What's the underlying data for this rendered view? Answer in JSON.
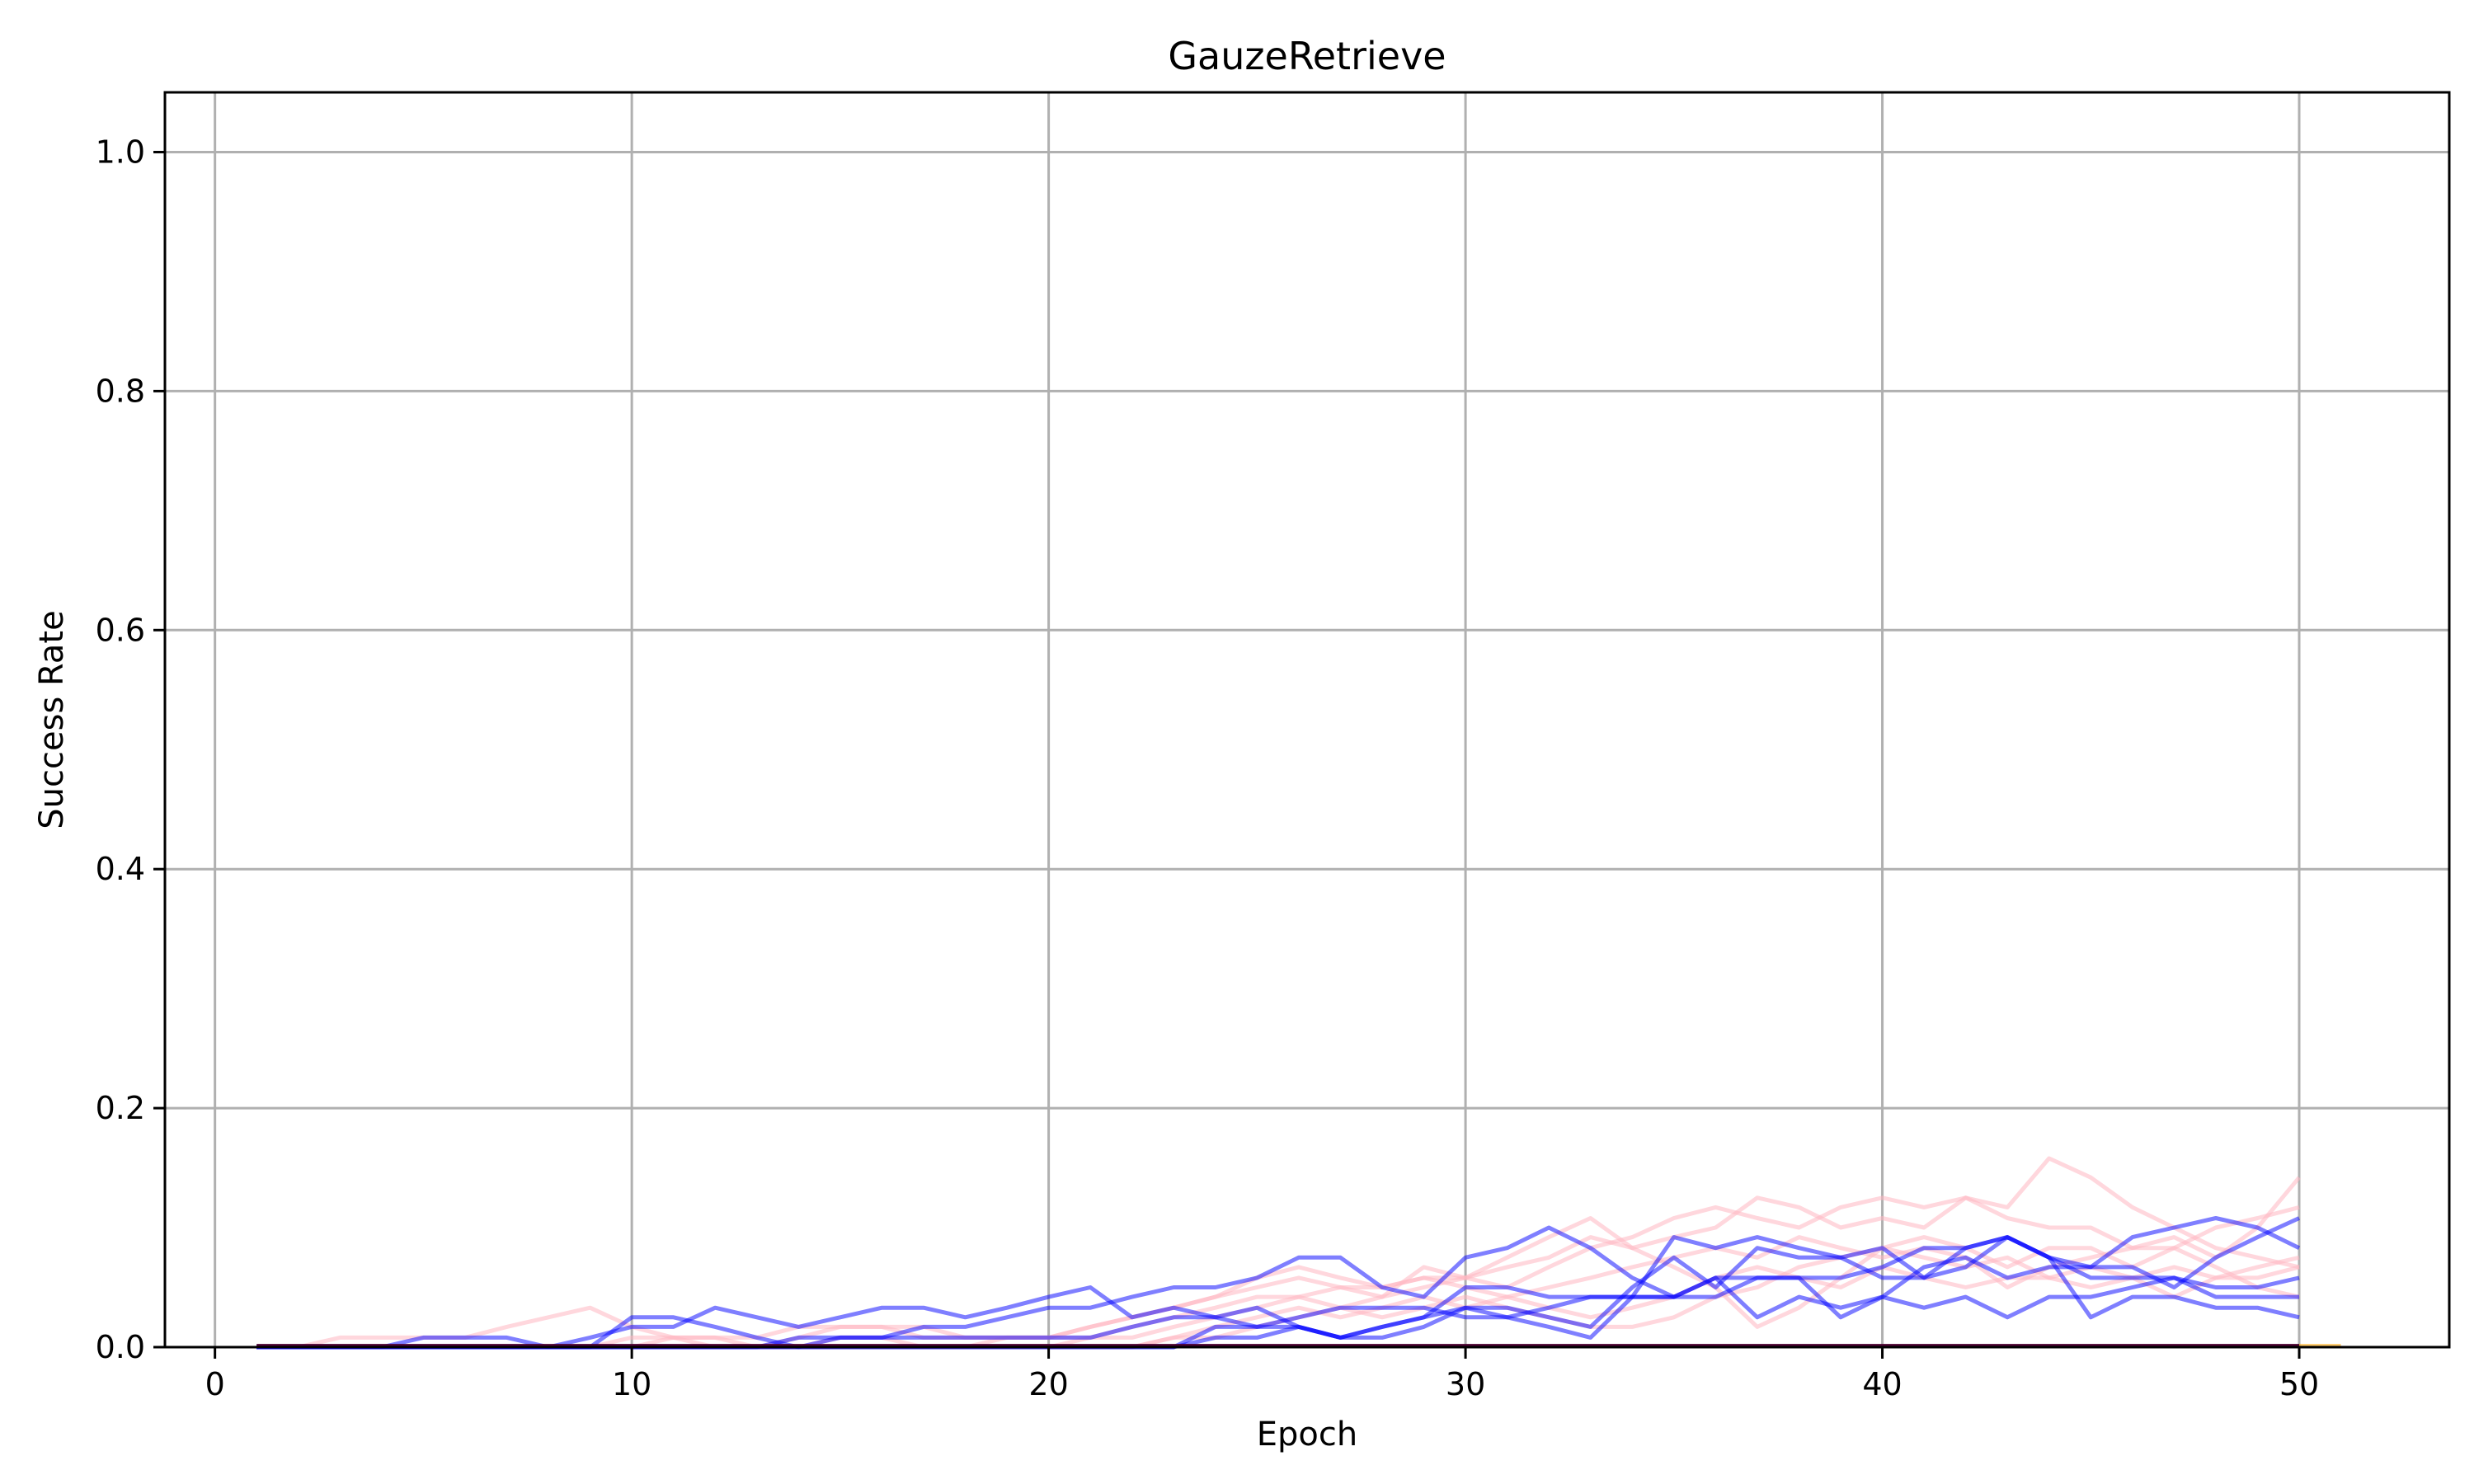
{
  "chart_data": {
    "type": "line",
    "title": "GauzeRetrieve",
    "xlabel": "Epoch",
    "ylabel": "Success Rate",
    "xlim": [
      -1.2,
      53.6
    ],
    "ylim": [
      0.0,
      1.05
    ],
    "xticks": [
      0,
      10,
      20,
      30,
      40,
      50
    ],
    "xtick_labels": [
      "0",
      "10",
      "20",
      "30",
      "40",
      "50"
    ],
    "yticks": [
      0.0,
      0.2,
      0.4,
      0.6,
      0.8,
      1.0
    ],
    "ytick_labels": [
      "0.0",
      "0.2",
      "0.4",
      "0.6",
      "0.8",
      "1.0"
    ],
    "grid": true,
    "legend": "none",
    "colors": {
      "blue": "#0000ff",
      "pink": "#ffb6c1",
      "dark": "#4b0030",
      "orange": "#ffa500"
    },
    "series": [
      {
        "color": "blue",
        "opacity": 0.5,
        "x": [
          1,
          2,
          3,
          4,
          5,
          6,
          7,
          8,
          9,
          10,
          11,
          12,
          13,
          14,
          15,
          16,
          17,
          18,
          19,
          20,
          21,
          22,
          23,
          24,
          25,
          26,
          27,
          28,
          29,
          30,
          31,
          32,
          33,
          34,
          35,
          36,
          37,
          38,
          39,
          40,
          41,
          42,
          43,
          44,
          45,
          46,
          47,
          48,
          49,
          50
        ],
        "y": [
          0,
          0,
          0,
          0,
          0.008,
          0.008,
          0.008,
          0,
          0,
          0.025,
          0.025,
          0.017,
          0.008,
          0,
          0.008,
          0.008,
          0.017,
          0.017,
          0.025,
          0.033,
          0.033,
          0.042,
          0.05,
          0.05,
          0.058,
          0.075,
          0.075,
          0.05,
          0.042,
          0.075,
          0.083,
          0.1,
          0.083,
          0.058,
          0.042,
          0.042,
          0.058,
          0.058,
          0.058,
          0.067,
          0.083,
          0.083,
          0.092,
          0.075,
          0.058,
          0.058,
          0.058,
          0.042,
          0.042,
          0.042
        ]
      },
      {
        "color": "blue",
        "opacity": 0.5,
        "x": [
          1,
          2,
          3,
          4,
          5,
          6,
          7,
          8,
          9,
          10,
          11,
          12,
          13,
          14,
          15,
          16,
          17,
          18,
          19,
          20,
          21,
          22,
          23,
          24,
          25,
          26,
          27,
          28,
          29,
          30,
          31,
          32,
          33,
          34,
          35,
          36,
          37,
          38,
          39,
          40,
          41,
          42,
          43,
          44,
          45,
          46,
          47,
          48,
          49,
          50
        ],
        "y": [
          0,
          0,
          0,
          0,
          0,
          0,
          0,
          0,
          0.008,
          0.017,
          0.017,
          0.033,
          0.025,
          0.017,
          0.025,
          0.033,
          0.033,
          0.025,
          0.033,
          0.042,
          0.05,
          0.025,
          0.033,
          0.025,
          0.033,
          0.017,
          0.008,
          0.017,
          0.025,
          0.05,
          0.05,
          0.042,
          0.042,
          0.042,
          0.092,
          0.083,
          0.092,
          0.083,
          0.075,
          0.058,
          0.058,
          0.067,
          0.092,
          0.075,
          0.067,
          0.092,
          0.1,
          0.108,
          0.1,
          0.083
        ]
      },
      {
        "color": "blue",
        "opacity": 0.5,
        "x": [
          1,
          2,
          3,
          4,
          5,
          6,
          7,
          8,
          9,
          10,
          11,
          12,
          13,
          14,
          15,
          16,
          17,
          18,
          19,
          20,
          21,
          22,
          23,
          24,
          25,
          26,
          27,
          28,
          29,
          30,
          31,
          32,
          33,
          34,
          35,
          36,
          37,
          38,
          39,
          40,
          41,
          42,
          43,
          44,
          45,
          46,
          47,
          48,
          49,
          50
        ],
        "y": [
          0,
          0,
          0,
          0,
          0,
          0,
          0,
          0,
          0,
          0,
          0,
          0,
          0,
          0.008,
          0.008,
          0.008,
          0.008,
          0.008,
          0.008,
          0.008,
          0.008,
          0.017,
          0.025,
          0.025,
          0.017,
          0.025,
          0.033,
          0.033,
          0.033,
          0.025,
          0.025,
          0.033,
          0.042,
          0.042,
          0.042,
          0.058,
          0.025,
          0.042,
          0.033,
          0.042,
          0.067,
          0.075,
          0.058,
          0.067,
          0.067,
          0.067,
          0.05,
          0.075,
          0.092,
          0.108
        ]
      },
      {
        "color": "blue",
        "opacity": 0.5,
        "x": [
          1,
          2,
          3,
          4,
          5,
          6,
          7,
          8,
          9,
          10,
          11,
          12,
          13,
          14,
          15,
          16,
          17,
          18,
          19,
          20,
          21,
          22,
          23,
          24,
          25,
          26,
          27,
          28,
          29,
          30,
          31,
          32,
          33,
          34,
          35,
          36,
          37,
          38,
          39,
          40,
          41,
          42,
          43,
          44,
          45,
          46,
          47,
          48,
          49,
          50
        ],
        "y": [
          0,
          0,
          0,
          0,
          0,
          0,
          0,
          0,
          0,
          0,
          0,
          0,
          0,
          0,
          0,
          0,
          0,
          0,
          0,
          0,
          0,
          0,
          0,
          0.008,
          0.008,
          0.017,
          0.008,
          0.008,
          0.017,
          0.033,
          0.033,
          0.025,
          0.017,
          0.05,
          0.075,
          0.05,
          0.083,
          0.075,
          0.075,
          0.083,
          0.058,
          0.083,
          0.092,
          0.075,
          0.025,
          0.042,
          0.042,
          0.033,
          0.033,
          0.025
        ]
      },
      {
        "color": "blue",
        "opacity": 0.5,
        "x": [
          1,
          2,
          3,
          4,
          5,
          6,
          7,
          8,
          9,
          10,
          11,
          12,
          13,
          14,
          15,
          16,
          17,
          18,
          19,
          20,
          21,
          22,
          23,
          24,
          25,
          26,
          27,
          28,
          29,
          30,
          31,
          32,
          33,
          34,
          35,
          36,
          37,
          38,
          39,
          40,
          41,
          42,
          43,
          44,
          45,
          46,
          47,
          48,
          49,
          50
        ],
        "y": [
          0,
          0,
          0,
          0,
          0,
          0,
          0,
          0,
          0,
          0,
          0,
          0,
          0,
          0,
          0,
          0,
          0,
          0,
          0,
          0,
          0,
          0,
          0,
          0.017,
          0.017,
          0.017,
          0.008,
          0.017,
          0.025,
          0.033,
          0.025,
          0.017,
          0.008,
          0.042,
          0.042,
          0.058,
          0.058,
          0.058,
          0.025,
          0.042,
          0.033,
          0.042,
          0.025,
          0.042,
          0.042,
          0.05,
          0.058,
          0.05,
          0.05,
          0.058
        ]
      },
      {
        "color": "pink",
        "opacity": 0.55,
        "x": [
          1,
          2,
          3,
          4,
          5,
          6,
          7,
          8,
          9,
          10,
          11,
          12,
          13,
          14,
          15,
          16,
          17,
          18,
          19,
          20,
          21,
          22,
          23,
          24,
          25,
          26,
          27,
          28,
          29,
          30,
          31,
          32,
          33,
          34,
          35,
          36,
          37,
          38,
          39,
          40,
          41,
          42,
          43,
          44,
          45,
          46,
          47,
          48,
          49,
          50
        ],
        "y": [
          0,
          0,
          0.008,
          0.008,
          0.008,
          0.008,
          0.017,
          0.025,
          0.033,
          0.017,
          0.008,
          0.008,
          0,
          0.008,
          0.017,
          0.017,
          0.008,
          0.008,
          0.008,
          0.008,
          0.017,
          0.025,
          0.033,
          0.042,
          0.058,
          0.067,
          0.058,
          0.05,
          0.058,
          0.058,
          0.05,
          0.067,
          0.083,
          0.092,
          0.108,
          0.117,
          0.108,
          0.1,
          0.117,
          0.125,
          0.117,
          0.125,
          0.117,
          0.158,
          0.142,
          0.117,
          0.1,
          0.083,
          0.075,
          0.067
        ]
      },
      {
        "color": "pink",
        "opacity": 0.55,
        "x": [
          1,
          2,
          3,
          4,
          5,
          6,
          7,
          8,
          9,
          10,
          11,
          12,
          13,
          14,
          15,
          16,
          17,
          18,
          19,
          20,
          21,
          22,
          23,
          24,
          25,
          26,
          27,
          28,
          29,
          30,
          31,
          32,
          33,
          34,
          35,
          36,
          37,
          38,
          39,
          40,
          41,
          42,
          43,
          44,
          45,
          46,
          47,
          48,
          49,
          50
        ],
        "y": [
          0,
          0,
          0,
          0,
          0,
          0,
          0,
          0,
          0,
          0.008,
          0.008,
          0.008,
          0.008,
          0.017,
          0.017,
          0.017,
          0.017,
          0.008,
          0.008,
          0.008,
          0.017,
          0.025,
          0.033,
          0.042,
          0.05,
          0.058,
          0.05,
          0.042,
          0.05,
          0.058,
          0.067,
          0.075,
          0.092,
          0.083,
          0.092,
          0.1,
          0.125,
          0.117,
          0.1,
          0.108,
          0.1,
          0.125,
          0.108,
          0.1,
          0.1,
          0.083,
          0.092,
          0.075,
          0.1,
          0.142
        ]
      },
      {
        "color": "pink",
        "opacity": 0.55,
        "x": [
          1,
          2,
          3,
          4,
          5,
          6,
          7,
          8,
          9,
          10,
          11,
          12,
          13,
          14,
          15,
          16,
          17,
          18,
          19,
          20,
          21,
          22,
          23,
          24,
          25,
          26,
          27,
          28,
          29,
          30,
          31,
          32,
          33,
          34,
          35,
          36,
          37,
          38,
          39,
          40,
          41,
          42,
          43,
          44,
          45,
          46,
          47,
          48,
          49,
          50
        ],
        "y": [
          0,
          0,
          0,
          0,
          0,
          0,
          0,
          0,
          0,
          0,
          0.008,
          0,
          0,
          0,
          0.008,
          0.008,
          0,
          0,
          0.008,
          0.008,
          0.008,
          0.017,
          0.025,
          0.033,
          0.042,
          0.042,
          0.033,
          0.042,
          0.067,
          0.058,
          0.075,
          0.092,
          0.108,
          0.083,
          0.067,
          0.05,
          0.017,
          0.033,
          0.058,
          0.083,
          0.092,
          0.083,
          0.067,
          0.083,
          0.083,
          0.067,
          0.083,
          0.1,
          0.108,
          0.117
        ]
      },
      {
        "color": "pink",
        "opacity": 0.55,
        "x": [
          1,
          2,
          3,
          4,
          5,
          6,
          7,
          8,
          9,
          10,
          11,
          12,
          13,
          14,
          15,
          16,
          17,
          18,
          19,
          20,
          21,
          22,
          23,
          24,
          25,
          26,
          27,
          28,
          29,
          30,
          31,
          32,
          33,
          34,
          35,
          36,
          37,
          38,
          39,
          40,
          41,
          42,
          43,
          44,
          45,
          46,
          47,
          48,
          49,
          50
        ],
        "y": [
          0,
          0,
          0,
          0,
          0,
          0,
          0,
          0,
          0,
          0,
          0,
          0,
          0,
          0,
          0,
          0,
          0,
          0,
          0,
          0,
          0,
          0,
          0.008,
          0.017,
          0.025,
          0.033,
          0.025,
          0.033,
          0.042,
          0.033,
          0.042,
          0.05,
          0.058,
          0.067,
          0.075,
          0.083,
          0.075,
          0.092,
          0.083,
          0.075,
          0.083,
          0.075,
          0.05,
          0.067,
          0.075,
          0.083,
          0.083,
          0.067,
          0.05,
          0.042
        ]
      },
      {
        "color": "pink",
        "opacity": 0.55,
        "x": [
          1,
          2,
          3,
          4,
          5,
          6,
          7,
          8,
          9,
          10,
          11,
          12,
          13,
          14,
          15,
          16,
          17,
          18,
          19,
          20,
          21,
          22,
          23,
          24,
          25,
          26,
          27,
          28,
          29,
          30,
          31,
          32,
          33,
          34,
          35,
          36,
          37,
          38,
          39,
          40,
          41,
          42,
          43,
          44,
          45,
          46,
          47,
          48,
          49,
          50
        ],
        "y": [
          0,
          0,
          0,
          0,
          0,
          0,
          0,
          0,
          0,
          0,
          0,
          0,
          0,
          0,
          0,
          0,
          0,
          0,
          0,
          0,
          0.008,
          0.008,
          0.017,
          0.025,
          0.033,
          0.042,
          0.05,
          0.05,
          0.058,
          0.05,
          0.042,
          0.033,
          0.025,
          0.033,
          0.042,
          0.058,
          0.067,
          0.058,
          0.05,
          0.067,
          0.058,
          0.05,
          0.058,
          0.058,
          0.067,
          0.058,
          0.042,
          0.058,
          0.067,
          0.075
        ]
      },
      {
        "color": "pink",
        "opacity": 0.55,
        "x": [
          1,
          2,
          3,
          4,
          5,
          6,
          7,
          8,
          9,
          10,
          11,
          12,
          13,
          14,
          15,
          16,
          17,
          18,
          19,
          20,
          21,
          22,
          23,
          24,
          25,
          26,
          27,
          28,
          29,
          30,
          31,
          32,
          33,
          34,
          35,
          36,
          37,
          38,
          39,
          40,
          41,
          42,
          43,
          44,
          45,
          46,
          47,
          48,
          49,
          50
        ],
        "y": [
          0,
          0,
          0,
          0,
          0,
          0,
          0,
          0,
          0,
          0,
          0,
          0,
          0,
          0,
          0,
          0,
          0,
          0,
          0,
          0,
          0,
          0,
          0.008,
          0.008,
          0.017,
          0.025,
          0.033,
          0.025,
          0.033,
          0.042,
          0.033,
          0.025,
          0.017,
          0.017,
          0.025,
          0.042,
          0.05,
          0.067,
          0.075,
          0.083,
          0.075,
          0.067,
          0.075,
          0.058,
          0.05,
          0.058,
          0.067,
          0.058,
          0.058,
          0.067
        ]
      },
      {
        "color": "dark",
        "opacity": 1.0,
        "x": [
          1,
          50
        ],
        "y": [
          0.001,
          0.001
        ]
      },
      {
        "color": "orange",
        "opacity": 0.6,
        "x": [
          50,
          51
        ],
        "y": [
          0.001,
          0.001
        ]
      }
    ]
  }
}
